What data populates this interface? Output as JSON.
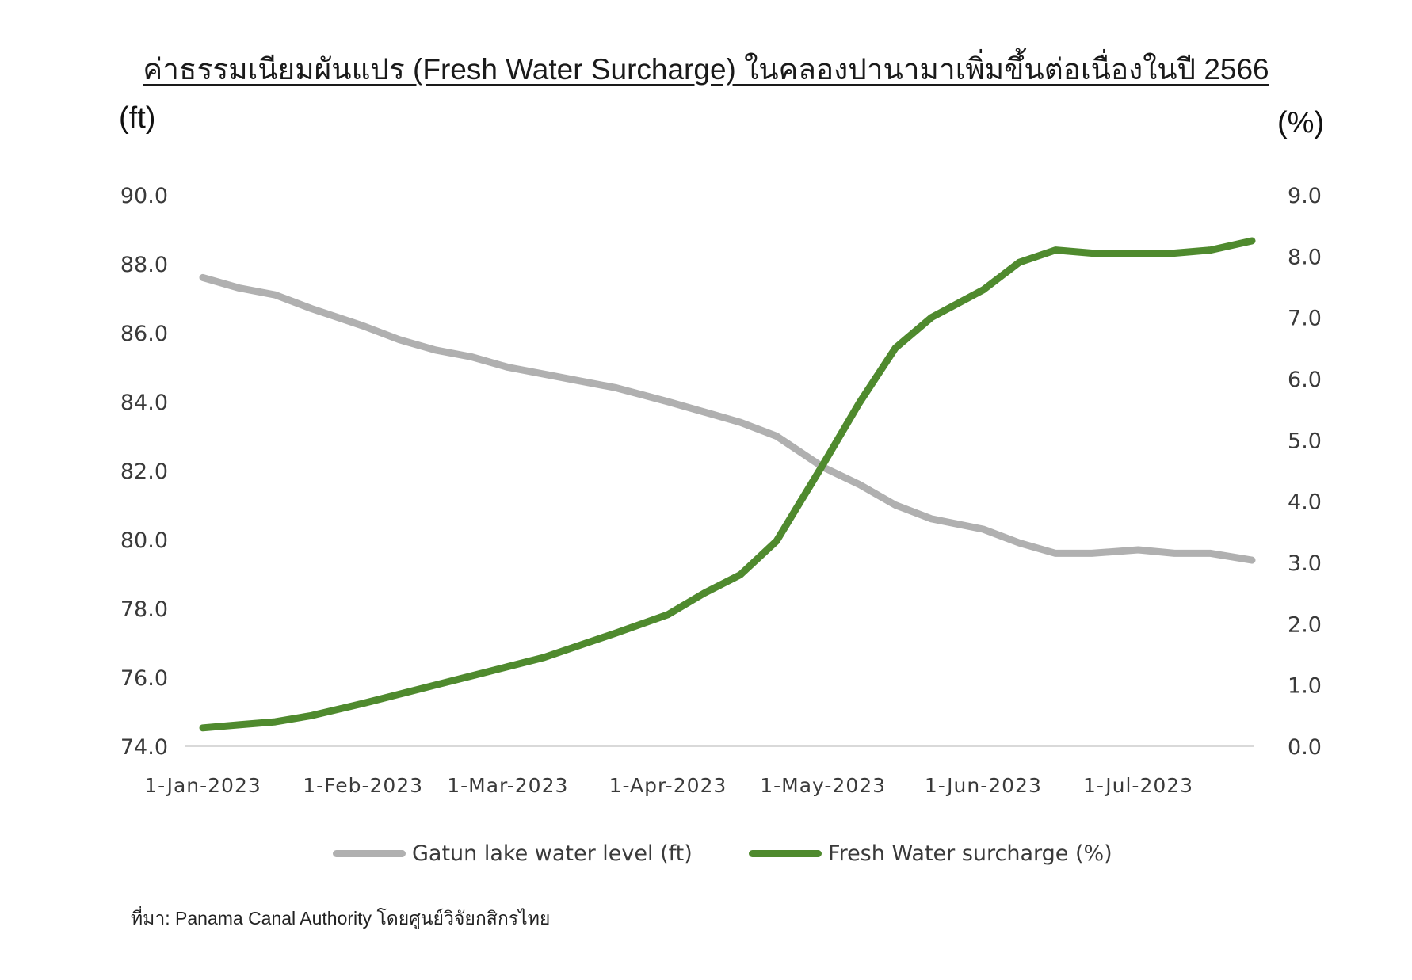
{
  "title": "ค่าธรรมเนียมผันแปร (Fresh Water Surcharge) ในคลองปานามาเพิ่มขึ้นต่อเนื่องในปี 2566",
  "left_unit": "(ft)",
  "right_unit": "(%)",
  "source": "ที่มา: Panama Canal Authority โดยศูนย์วิจัยกสิกรไทย",
  "colors": {
    "gatun": "#b0b0b0",
    "surcharge": "#4f8a2e",
    "axis": "#d9d9d9"
  },
  "chart_data": {
    "type": "line",
    "x_tick_labels": [
      "1-Jan-2023",
      "1-Feb-2023",
      "1-Mar-2023",
      "1-Apr-2023",
      "1-May-2023",
      "1-Jun-2023",
      "1-Jul-2023"
    ],
    "x_range": [
      "2023-01-01",
      "2023-07-23"
    ],
    "y_left": {
      "ticks": [
        "74.0",
        "76.0",
        "78.0",
        "80.0",
        "82.0",
        "84.0",
        "86.0",
        "88.0",
        "90.0"
      ],
      "ylim": [
        74,
        90
      ]
    },
    "y_right": {
      "ticks": [
        "0.0",
        "1.0",
        "2.0",
        "3.0",
        "4.0",
        "5.0",
        "6.0",
        "7.0",
        "8.0",
        "9.0"
      ],
      "ylim": [
        0,
        9
      ]
    },
    "legend_position": "bottom",
    "series": [
      {
        "name": "Gatun lake water level (ft)",
        "axis": "left",
        "points": [
          [
            "2023-01-01",
            87.6
          ],
          [
            "2023-01-08",
            87.3
          ],
          [
            "2023-01-15",
            87.1
          ],
          [
            "2023-01-22",
            86.7
          ],
          [
            "2023-02-01",
            86.2
          ],
          [
            "2023-02-08",
            85.8
          ],
          [
            "2023-02-15",
            85.5
          ],
          [
            "2023-02-22",
            85.3
          ],
          [
            "2023-03-01",
            85.0
          ],
          [
            "2023-03-08",
            84.8
          ],
          [
            "2023-03-15",
            84.6
          ],
          [
            "2023-03-22",
            84.4
          ],
          [
            "2023-04-01",
            84.0
          ],
          [
            "2023-04-08",
            83.7
          ],
          [
            "2023-04-15",
            83.4
          ],
          [
            "2023-04-22",
            83.0
          ],
          [
            "2023-05-01",
            82.1
          ],
          [
            "2023-05-08",
            81.6
          ],
          [
            "2023-05-15",
            81.0
          ],
          [
            "2023-05-22",
            80.6
          ],
          [
            "2023-06-01",
            80.3
          ],
          [
            "2023-06-08",
            79.9
          ],
          [
            "2023-06-15",
            79.6
          ],
          [
            "2023-06-22",
            79.6
          ],
          [
            "2023-07-01",
            79.7
          ],
          [
            "2023-07-08",
            79.6
          ],
          [
            "2023-07-15",
            79.6
          ],
          [
            "2023-07-23",
            79.4
          ]
        ]
      },
      {
        "name": "Fresh Water surcharge (%)",
        "axis": "right",
        "points": [
          [
            "2023-01-01",
            0.3
          ],
          [
            "2023-01-08",
            0.35
          ],
          [
            "2023-01-15",
            0.4
          ],
          [
            "2023-01-22",
            0.5
          ],
          [
            "2023-02-01",
            0.7
          ],
          [
            "2023-02-08",
            0.85
          ],
          [
            "2023-02-15",
            1.0
          ],
          [
            "2023-02-22",
            1.15
          ],
          [
            "2023-03-01",
            1.3
          ],
          [
            "2023-03-08",
            1.45
          ],
          [
            "2023-03-15",
            1.65
          ],
          [
            "2023-03-22",
            1.85
          ],
          [
            "2023-04-01",
            2.15
          ],
          [
            "2023-04-08",
            2.5
          ],
          [
            "2023-04-15",
            2.8
          ],
          [
            "2023-04-22",
            3.35
          ],
          [
            "2023-05-01",
            4.6
          ],
          [
            "2023-05-08",
            5.6
          ],
          [
            "2023-05-15",
            6.5
          ],
          [
            "2023-05-22",
            7.0
          ],
          [
            "2023-06-01",
            7.45
          ],
          [
            "2023-06-08",
            7.9
          ],
          [
            "2023-06-15",
            8.1
          ],
          [
            "2023-06-22",
            8.05
          ],
          [
            "2023-07-01",
            8.05
          ],
          [
            "2023-07-08",
            8.05
          ],
          [
            "2023-07-15",
            8.1
          ],
          [
            "2023-07-23",
            8.25
          ]
        ]
      }
    ]
  }
}
